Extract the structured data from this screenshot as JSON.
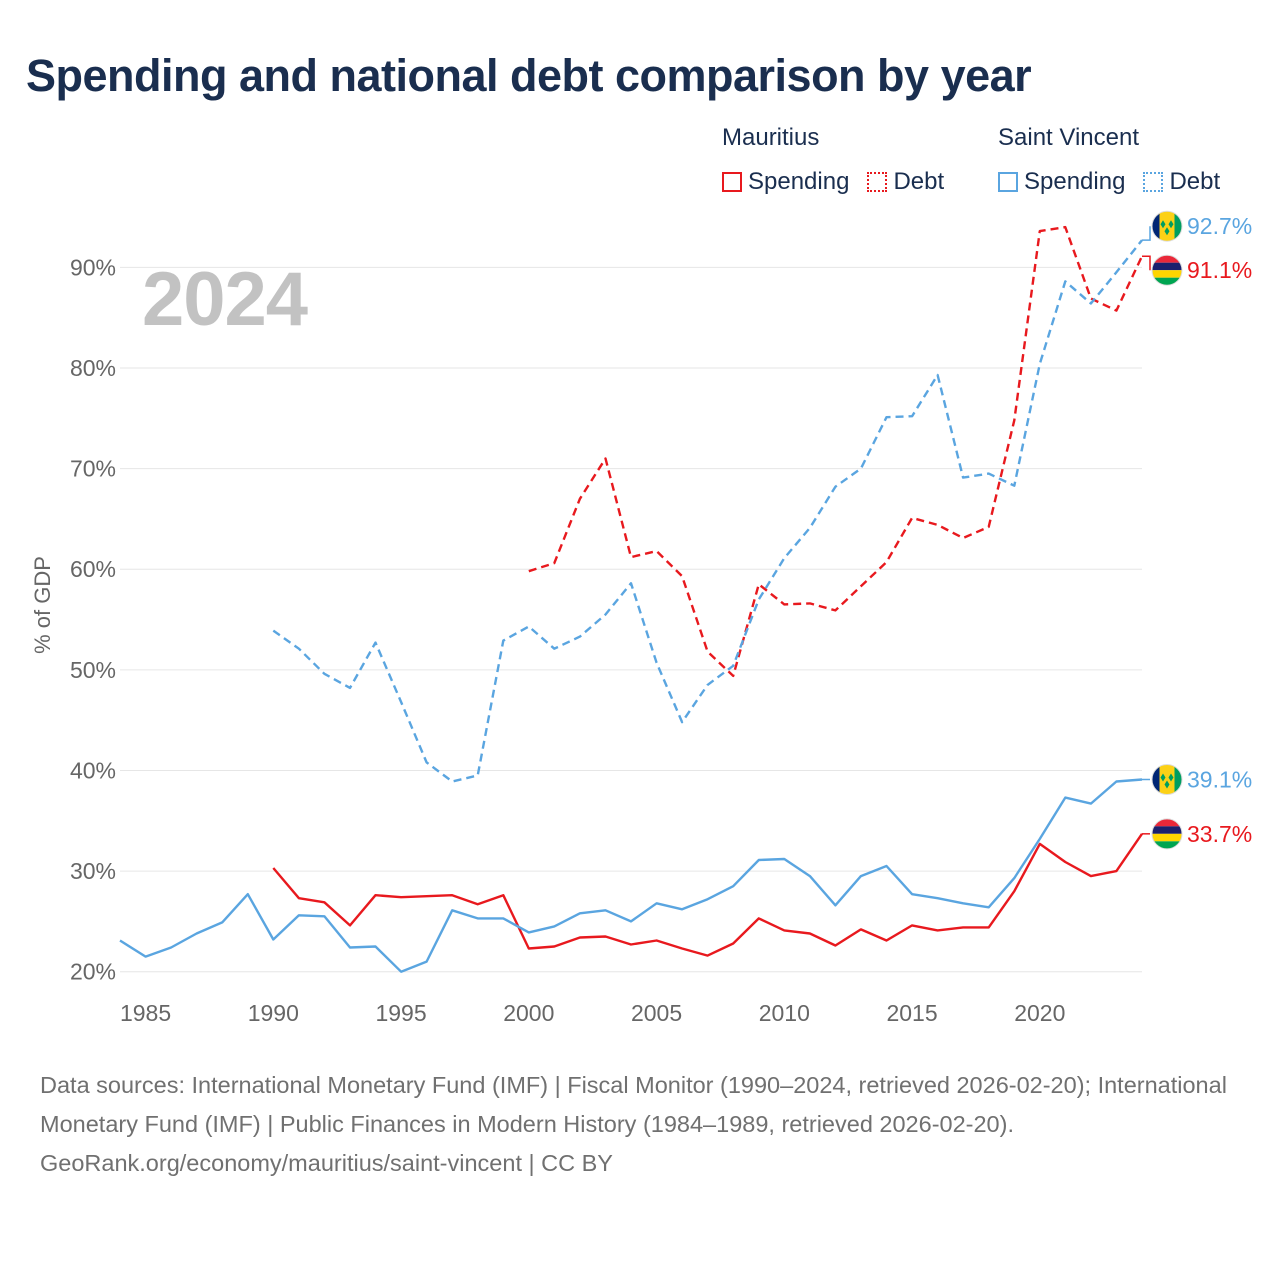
{
  "title": "Spending and national debt comparison by year",
  "year_label": "2024",
  "legend": {
    "groups": [
      {
        "name": "Mauritius",
        "spending": "Spending",
        "debt": "Debt"
      },
      {
        "name": "Saint Vincent",
        "spending": "Spending",
        "debt": "Debt"
      }
    ]
  },
  "colors": {
    "mauritius": "#e8191e",
    "saint_vincent": "#5aa5e0",
    "grid": "#e6e6e6",
    "axis_text": "#666666"
  },
  "chart_data": {
    "type": "line",
    "ylabel": "% of GDP",
    "xlim": [
      1984,
      2024
    ],
    "ylim": [
      15,
      95
    ],
    "x_ticks": [
      1985,
      1990,
      1995,
      2000,
      2005,
      2010,
      2015,
      2020
    ],
    "y_ticks": [
      20,
      30,
      40,
      50,
      60,
      70,
      80,
      90
    ],
    "y_tick_labels": [
      "20%",
      "30%",
      "40%",
      "50%",
      "60%",
      "70%",
      "80%",
      "90%"
    ],
    "series": [
      {
        "name": "Mauritius Spending",
        "country": "mauritius",
        "style": "solid",
        "x": [
          1990,
          1991,
          1992,
          1993,
          1994,
          1995,
          1996,
          1997,
          1998,
          1999,
          2000,
          2001,
          2002,
          2003,
          2004,
          2005,
          2006,
          2007,
          2008,
          2009,
          2010,
          2011,
          2012,
          2013,
          2014,
          2015,
          2016,
          2017,
          2018,
          2019,
          2020,
          2021,
          2022,
          2023,
          2024
        ],
        "values": [
          30.3,
          27.3,
          26.9,
          24.6,
          27.6,
          27.4,
          27.5,
          27.6,
          26.7,
          27.6,
          22.3,
          22.5,
          23.4,
          23.5,
          22.7,
          23.1,
          22.3,
          21.6,
          22.8,
          25.3,
          24.1,
          23.8,
          22.6,
          24.2,
          23.1,
          24.6,
          24.1,
          24.4,
          24.4,
          28.0,
          32.7,
          30.9,
          29.5,
          30.0,
          33.7
        ],
        "end_label": "33.7%"
      },
      {
        "name": "Mauritius Debt",
        "country": "mauritius",
        "style": "dashed",
        "x": [
          2000,
          2001,
          2002,
          2003,
          2004,
          2005,
          2006,
          2007,
          2008,
          2009,
          2010,
          2011,
          2012,
          2013,
          2014,
          2015,
          2016,
          2017,
          2018,
          2019,
          2020,
          2021,
          2022,
          2023,
          2024
        ],
        "values": [
          59.8,
          60.6,
          67.0,
          71.0,
          61.2,
          61.8,
          59.3,
          51.8,
          49.4,
          58.5,
          56.5,
          56.6,
          55.9,
          58.3,
          60.7,
          65.1,
          64.4,
          63.1,
          64.2,
          74.8,
          93.6,
          94.0,
          86.9,
          85.7,
          91.1
        ],
        "end_label": "91.1%"
      },
      {
        "name": "Saint Vincent Spending",
        "country": "saint_vincent",
        "style": "solid",
        "x": [
          1984,
          1985,
          1986,
          1987,
          1988,
          1989,
          1990,
          1991,
          1992,
          1993,
          1994,
          1995,
          1996,
          1997,
          1998,
          1999,
          2000,
          2001,
          2002,
          2003,
          2004,
          2005,
          2006,
          2007,
          2008,
          2009,
          2010,
          2011,
          2012,
          2013,
          2014,
          2015,
          2016,
          2017,
          2018,
          2019,
          2020,
          2021,
          2022,
          2023,
          2024
        ],
        "values": [
          23.1,
          21.5,
          22.4,
          23.8,
          24.9,
          27.7,
          23.2,
          25.6,
          25.5,
          22.4,
          22.5,
          20.0,
          21.0,
          26.1,
          25.3,
          25.3,
          23.9,
          24.5,
          25.8,
          26.1,
          25.0,
          26.8,
          26.2,
          27.2,
          28.5,
          31.1,
          31.2,
          29.5,
          26.6,
          29.5,
          30.5,
          27.7,
          27.3,
          26.8,
          26.4,
          29.3,
          33.2,
          37.3,
          36.7,
          38.9,
          39.1
        ],
        "end_label": "39.1%"
      },
      {
        "name": "Saint Vincent Debt",
        "country": "saint_vincent",
        "style": "dashed",
        "x": [
          1990,
          1991,
          1992,
          1993,
          1994,
          1995,
          1996,
          1997,
          1998,
          1999,
          2000,
          2001,
          2002,
          2003,
          2004,
          2005,
          2006,
          2007,
          2008,
          2009,
          2010,
          2011,
          2012,
          2013,
          2014,
          2015,
          2016,
          2017,
          2018,
          2019,
          2020,
          2021,
          2022,
          2023,
          2024
        ],
        "values": [
          53.9,
          52.1,
          49.6,
          48.2,
          52.7,
          46.8,
          40.8,
          38.9,
          39.5,
          52.9,
          54.3,
          52.1,
          53.3,
          55.5,
          58.6,
          50.7,
          44.8,
          48.5,
          50.4,
          57.0,
          61.1,
          64.1,
          68.2,
          70.0,
          75.1,
          75.2,
          79.3,
          69.1,
          69.5,
          68.3,
          80.4,
          88.6,
          86.4,
          89.5,
          92.7
        ],
        "end_label": "92.7%"
      }
    ]
  },
  "footer": {
    "sources": "Data sources: International Monetary Fund (IMF) | Fiscal Monitor (1990–2024, retrieved 2026-02-20); International Monetary Fund (IMF) | Public Finances in Modern History (1984–1989, retrieved 2026-02-20).",
    "credit": "GeoRank.org/economy/mauritius/saint-vincent | CC BY"
  }
}
